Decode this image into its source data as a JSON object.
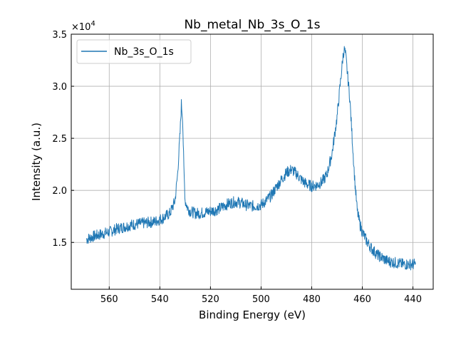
{
  "chart_data": {
    "type": "line",
    "title": "Nb_metal_Nb_3s_O_1s",
    "xlabel": "Binding Energy (eV)",
    "ylabel": "Intensity (a.u.)",
    "y_offset_label": "×10",
    "y_offset_exponent": "4",
    "xlim": [
      575,
      432
    ],
    "ylim": [
      10500,
      35000
    ],
    "x_reversed": true,
    "grid": true,
    "legend_position": "upper-left",
    "x_ticks": [
      560,
      540,
      520,
      500,
      480,
      460,
      440
    ],
    "y_ticks": [
      15000,
      20000,
      25000,
      30000,
      35000
    ],
    "y_tick_labels": [
      "1.5",
      "2.0",
      "2.5",
      "3.0",
      "3.5"
    ],
    "series": [
      {
        "name": "Nb_3s_O_1s",
        "color": "#1f77b4",
        "x": [
          569,
          566,
          563,
          560,
          557,
          554,
          551,
          548,
          545,
          542,
          539,
          536,
          534,
          533,
          532,
          531.5,
          531,
          530.5,
          530,
          529,
          528,
          526,
          524,
          522,
          520,
          518,
          516,
          514,
          512,
          510,
          508,
          506,
          504,
          502,
          500,
          498,
          496,
          494,
          492,
          490,
          488,
          486,
          484,
          482,
          480,
          478,
          476,
          474,
          472,
          470,
          469,
          468,
          467.5,
          467,
          466.5,
          466,
          465,
          464,
          463,
          462,
          461,
          460,
          459,
          458,
          456,
          454,
          452,
          450,
          448,
          446,
          444,
          442,
          440,
          439
        ],
        "y": [
          15300,
          15600,
          15800,
          16000,
          16300,
          16500,
          16700,
          16800,
          16900,
          17000,
          17300,
          17800,
          19000,
          21500,
          25500,
          28300,
          27000,
          22000,
          19000,
          18300,
          18000,
          17800,
          17800,
          17900,
          18000,
          18100,
          18300,
          18600,
          18800,
          18900,
          18800,
          18600,
          18500,
          18500,
          18600,
          19000,
          19500,
          20300,
          21000,
          21700,
          22000,
          21600,
          21000,
          20600,
          20400,
          20500,
          20800,
          21500,
          23500,
          27000,
          29500,
          32000,
          33200,
          33500,
          32800,
          31500,
          29000,
          25000,
          21000,
          18000,
          16800,
          16000,
          15500,
          15000,
          14300,
          13800,
          13500,
          13200,
          13100,
          13000,
          12900,
          12900,
          12900,
          12900
        ]
      }
    ]
  }
}
